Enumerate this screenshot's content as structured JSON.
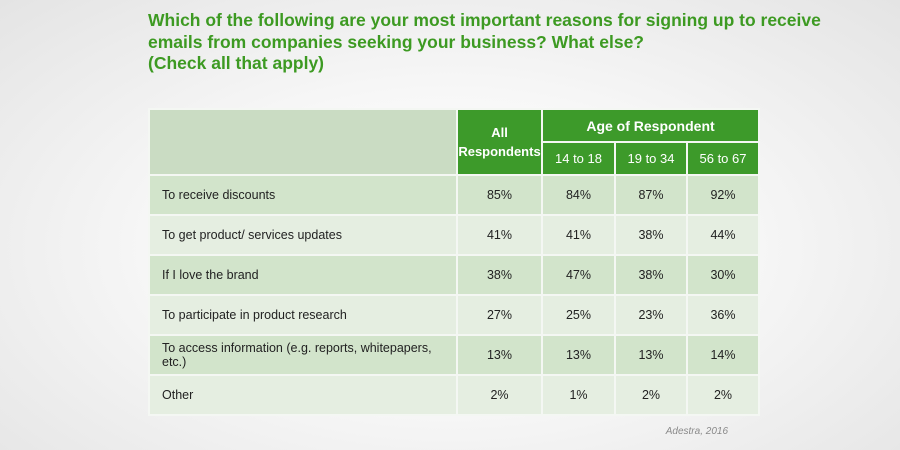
{
  "title": {
    "lines": [
      "Which of the following are your most important reasons for signing up to receive",
      "emails from companies seeking your business? What else?",
      "(Check all that apply)"
    ]
  },
  "colors": {
    "accent": "#3d9a2a",
    "title": "#3d9a22"
  },
  "chart_data": {
    "type": "table",
    "title": "Which of the following are your most important reasons for signing up to receive emails from companies seeking your business? What else? (Check all that apply)",
    "headers": {
      "all": "All Respondents",
      "all_lines": [
        "All",
        "Respondents"
      ],
      "group": "Age of Respondent",
      "ages": [
        "14 to 18",
        "19 to 34",
        "56 to 67"
      ]
    },
    "rows": [
      {
        "label": "To receive discounts",
        "values": [
          "85%",
          "84%",
          "87%",
          "92%"
        ]
      },
      {
        "label": "To get product/ services updates",
        "values": [
          "41%",
          "41%",
          "38%",
          "44%"
        ]
      },
      {
        "label": "If I love the brand",
        "values": [
          "38%",
          "47%",
          "38%",
          "30%"
        ]
      },
      {
        "label": "To participate in product research",
        "values": [
          "27%",
          "25%",
          "23%",
          "36%"
        ]
      },
      {
        "label": "To access information (e.g. reports, whitepapers, etc.)",
        "values": [
          "13%",
          "13%",
          "13%",
          "14%"
        ]
      },
      {
        "label": "Other",
        "values": [
          "2%",
          "1%",
          "2%",
          "2%"
        ]
      }
    ]
  },
  "source": "Adestra, 2016"
}
